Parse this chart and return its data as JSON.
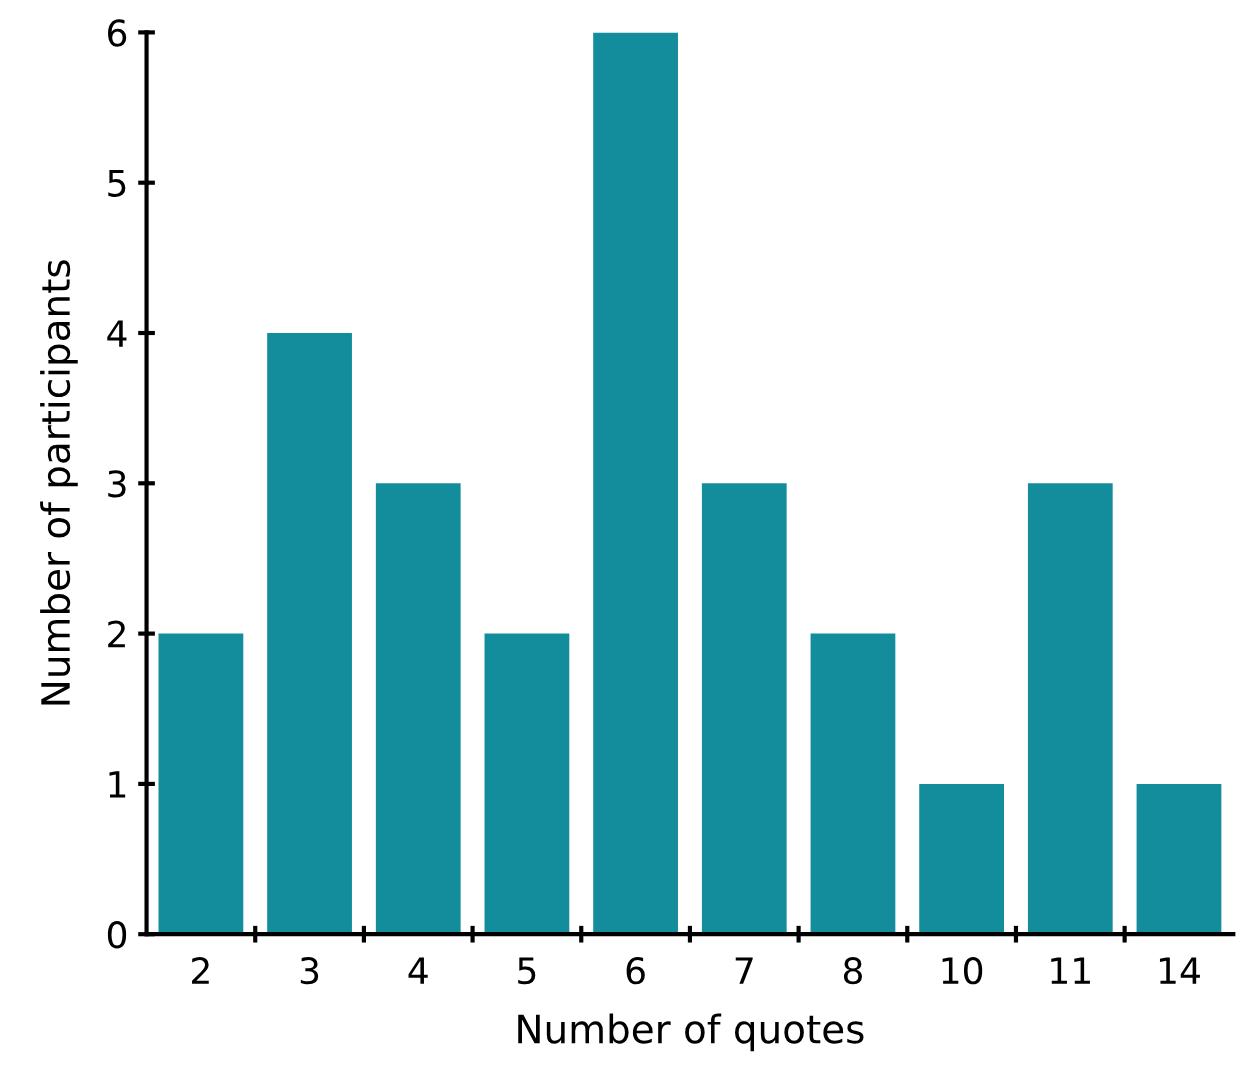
{
  "chart_data": {
    "type": "bar",
    "xlabel": "Number of quotes",
    "ylabel": "Number of participants",
    "categories": [
      "2",
      "3",
      "4",
      "5",
      "6",
      "7",
      "8",
      "10",
      "11",
      "14"
    ],
    "values": [
      2,
      4,
      3,
      2,
      6,
      3,
      2,
      1,
      3,
      1
    ],
    "color": "#138d9b",
    "ylim": [
      0,
      6
    ],
    "yticks": [
      0,
      1,
      2,
      3,
      4,
      5,
      6
    ],
    "grid": false,
    "legend": false
  }
}
